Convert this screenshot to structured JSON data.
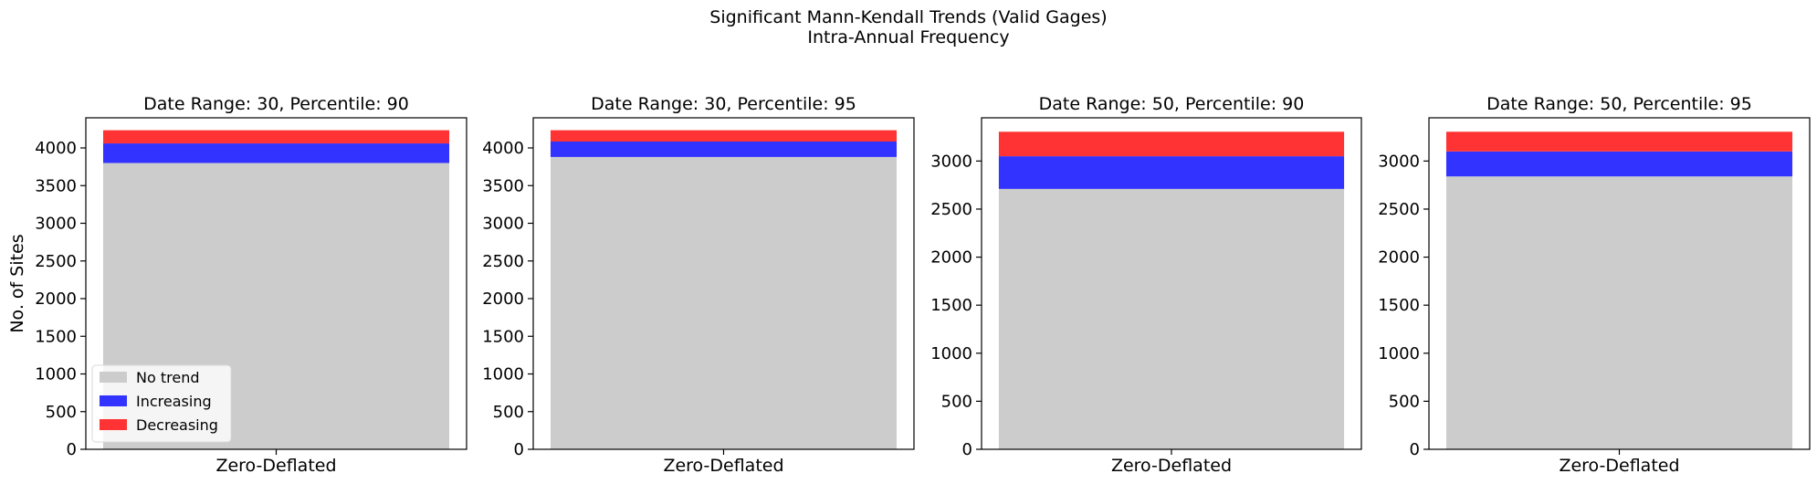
{
  "figure": {
    "title_line1": "Significant Mann-Kendall Trends (Valid Gages)",
    "title_line2": "Intra-Annual Frequency"
  },
  "legend": {
    "placement": "lower-left (first panel)",
    "entries": [
      "No trend",
      "Increasing",
      "Decreasing"
    ]
  },
  "colors": {
    "No trend": "#cccccc",
    "Increasing": "#3333ff",
    "Decreasing": "#ff3333"
  },
  "chart_data": [
    {
      "type": "bar",
      "stacked": true,
      "title": "Date Range: 30, Percentile: 90",
      "ylabel": "No. of Sites",
      "xlabel": "",
      "categories": [
        "Zero-Deflated"
      ],
      "ylim": [
        0,
        4400
      ],
      "yticks": [
        0,
        500,
        1000,
        1500,
        2000,
        2500,
        3000,
        3500,
        4000
      ],
      "series": [
        {
          "name": "No trend",
          "values": [
            3800
          ]
        },
        {
          "name": "Increasing",
          "values": [
            260
          ]
        },
        {
          "name": "Decreasing",
          "values": [
            175
          ]
        }
      ]
    },
    {
      "type": "bar",
      "stacked": true,
      "title": "Date Range: 30, Percentile: 95",
      "ylabel": "",
      "xlabel": "",
      "categories": [
        "Zero-Deflated"
      ],
      "ylim": [
        0,
        4400
      ],
      "yticks": [
        0,
        500,
        1000,
        1500,
        2000,
        2500,
        3000,
        3500,
        4000
      ],
      "series": [
        {
          "name": "No trend",
          "values": [
            3880
          ]
        },
        {
          "name": "Increasing",
          "values": [
            205
          ]
        },
        {
          "name": "Decreasing",
          "values": [
            150
          ]
        }
      ]
    },
    {
      "type": "bar",
      "stacked": true,
      "title": "Date Range: 50, Percentile: 90",
      "ylabel": "",
      "xlabel": "",
      "categories": [
        "Zero-Deflated"
      ],
      "ylim": [
        0,
        3450
      ],
      "yticks": [
        0,
        500,
        1000,
        1500,
        2000,
        2500,
        3000
      ],
      "series": [
        {
          "name": "No trend",
          "values": [
            2710
          ]
        },
        {
          "name": "Increasing",
          "values": [
            340
          ]
        },
        {
          "name": "Decreasing",
          "values": [
            255
          ]
        }
      ]
    },
    {
      "type": "bar",
      "stacked": true,
      "title": "Date Range: 50, Percentile: 95",
      "ylabel": "",
      "xlabel": "",
      "categories": [
        "Zero-Deflated"
      ],
      "ylim": [
        0,
        3450
      ],
      "yticks": [
        0,
        500,
        1000,
        1500,
        2000,
        2500,
        3000
      ],
      "series": [
        {
          "name": "No trend",
          "values": [
            2840
          ]
        },
        {
          "name": "Increasing",
          "values": [
            260
          ]
        },
        {
          "name": "Decreasing",
          "values": [
            205
          ]
        }
      ]
    }
  ]
}
